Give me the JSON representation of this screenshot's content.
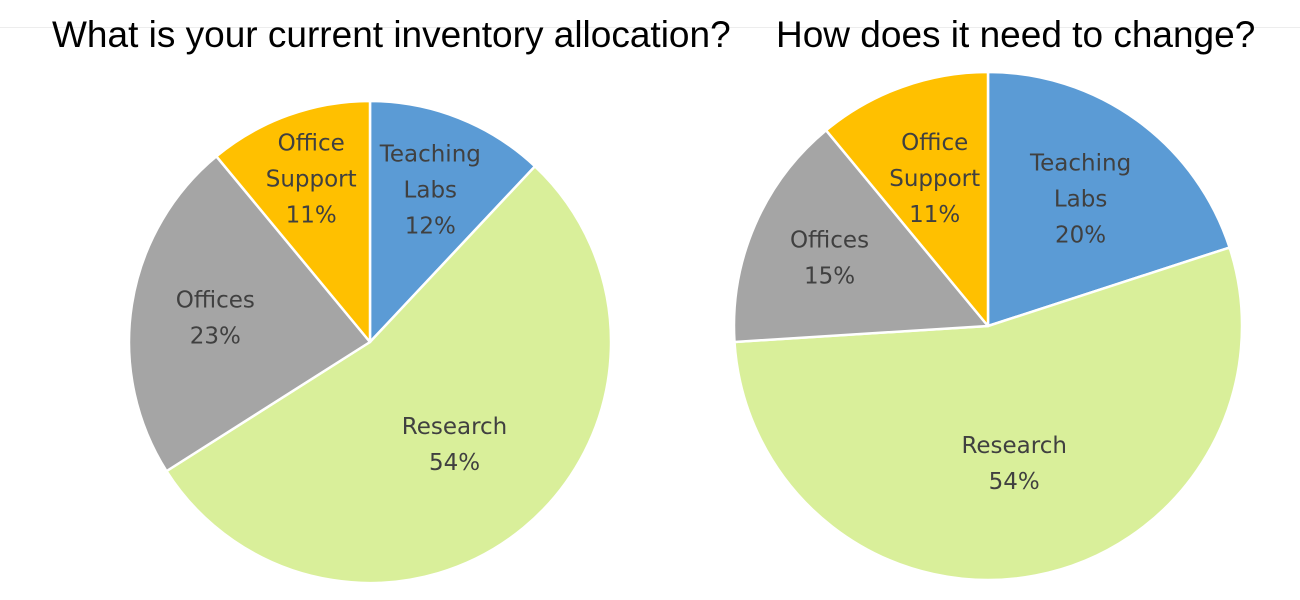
{
  "titles": {
    "left": "What is your current inventory allocation?",
    "right": "How does it need to change?"
  },
  "chart_data": [
    {
      "type": "pie",
      "title": "What is your current inventory allocation?",
      "slices": [
        {
          "name": "Teaching Labs",
          "label_lines": [
            "Teaching",
            "Labs"
          ],
          "value": 12,
          "value_label": "12%",
          "color": "#5B9BD5"
        },
        {
          "name": "Research",
          "label_lines": [
            "Research"
          ],
          "value": 54,
          "value_label": "54%",
          "color": "#D9EF9A"
        },
        {
          "name": "Offices",
          "label_lines": [
            "Offices"
          ],
          "value": 23,
          "value_label": "23%",
          "color": "#A5A5A5"
        },
        {
          "name": "Office Support",
          "label_lines": [
            "Office",
            "Support"
          ],
          "value": 11,
          "value_label": "11%",
          "color": "#FFC000"
        }
      ]
    },
    {
      "type": "pie",
      "title": "How does it need to change?",
      "slices": [
        {
          "name": "Teaching Labs",
          "label_lines": [
            "Teaching",
            "Labs"
          ],
          "value": 20,
          "value_label": "20%",
          "color": "#5B9BD5"
        },
        {
          "name": "Research",
          "label_lines": [
            "Research"
          ],
          "value": 54,
          "value_label": "54%",
          "color": "#D9EF9A"
        },
        {
          "name": "Offices",
          "label_lines": [
            "Offices"
          ],
          "value": 15,
          "value_label": "15%",
          "color": "#A5A5A5"
        },
        {
          "name": "Office Support",
          "label_lines": [
            "Office",
            "Support"
          ],
          "value": 11,
          "value_label": "11%",
          "color": "#FFC000"
        }
      ]
    }
  ]
}
